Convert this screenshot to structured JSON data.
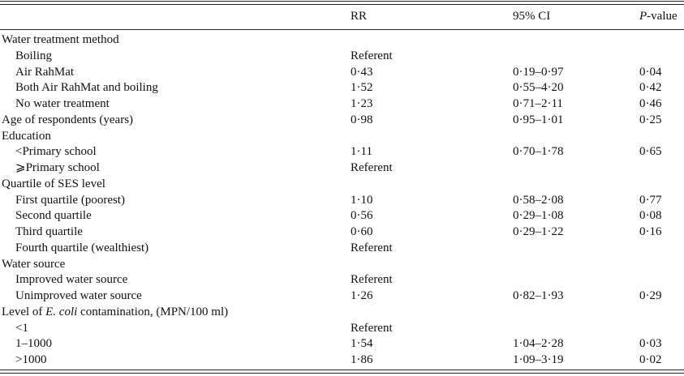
{
  "table": {
    "header": [
      "RR",
      "95% CI",
      [
        "P",
        "-value"
      ]
    ],
    "rows": [
      [
        "Water treatment method"
      ],
      [
        "Boiling",
        "Referent"
      ],
      [
        "Air RahMat",
        "0·43",
        "0·19–0·97",
        "0·04"
      ],
      [
        "Both Air RahMat and boiling",
        "1·52",
        "0·55–4·20",
        "0·42"
      ],
      [
        "No water treatment",
        "1·23",
        "0·71–2·11",
        "0·46"
      ],
      [
        "Age of respondents (years)",
        "0·98",
        "0·95–1·01",
        "0·25"
      ],
      [
        "Education"
      ],
      [
        "<Primary school",
        "1·11",
        "0·70–1·78",
        "0·65"
      ],
      [
        "⩾Primary school",
        "Referent"
      ],
      [
        "Quartile of SES level"
      ],
      [
        "First quartile (poorest)",
        "1·10",
        "0·58–2·08",
        "0·77"
      ],
      [
        "Second quartile",
        "0·56",
        "0·29–1·08",
        "0·08"
      ],
      [
        "Third quartile",
        "0·60",
        "0·29–1·22",
        "0·16"
      ],
      [
        "Fourth quartile (wealthiest)",
        "Referent"
      ],
      [
        "Water source"
      ],
      [
        "Improved water source",
        "Referent"
      ],
      [
        "Unimproved water source",
        "1·26",
        "0·82–1·93",
        "0·29"
      ],
      [
        [
          "Level of ",
          "E. coli",
          " contamination, (MPN/100 ml)"
        ]
      ],
      [
        "<1",
        "Referent"
      ],
      [
        "1–1000",
        "1·54",
        "1·04–2·28",
        "0·03"
      ],
      [
        ">1000",
        "1·86",
        "1·09–3·19",
        "0·02"
      ]
    ]
  }
}
